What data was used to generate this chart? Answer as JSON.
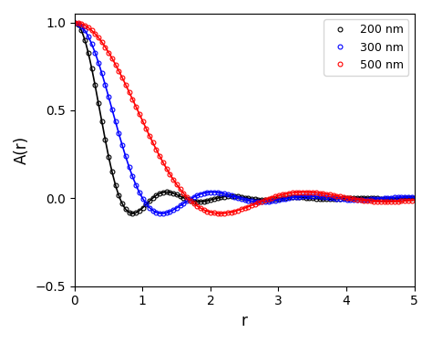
{
  "title": "",
  "xlabel": "r",
  "ylabel": "A(r)",
  "xlim": [
    0,
    5
  ],
  "ylim": [
    -0.5,
    1.05
  ],
  "xticks": [
    0,
    1,
    2,
    3,
    4,
    5
  ],
  "yticks": [
    -0.5,
    0,
    0.5,
    1
  ],
  "series": [
    {
      "label": "200 nm",
      "color": "black",
      "R_plot": 0.933
    },
    {
      "label": "300 nm",
      "color": "blue",
      "R_plot": 1.4
    },
    {
      "label": "500 nm",
      "color": "red",
      "R_plot": 2.336
    }
  ],
  "background_color": "#ffffff",
  "legend_loc": "upper right",
  "marker": "o",
  "markersize": 3.5,
  "linewidth": 1.2,
  "n_points": 600,
  "marker_step": 6
}
